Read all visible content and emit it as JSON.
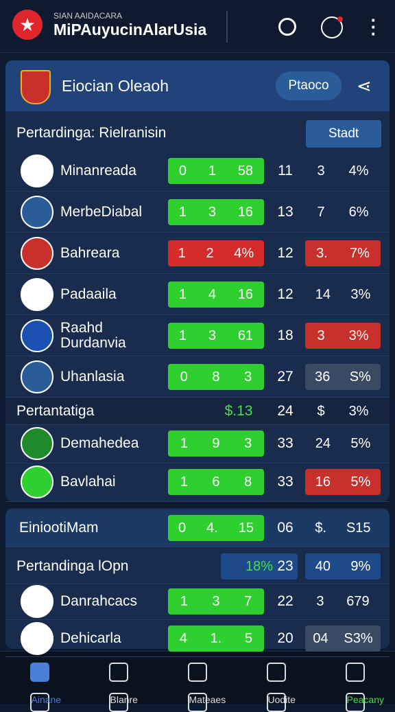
{
  "header": {
    "kicker": "SIAN AAIDACARA",
    "title": "MiPAuyucinAlarUsia"
  },
  "card1": {
    "title": "Eiocian Oleaoh",
    "button": "Ptaoco",
    "subtitle": "Pertardinga: Rielranisin",
    "stat_button": "Stadt",
    "rows": [
      {
        "name": "Minanreada",
        "score": [
          "0",
          "1",
          "58"
        ],
        "score_color": "#2fcf2f",
        "played": "11",
        "last": [
          "3",
          "4%"
        ],
        "last_color": null
      },
      {
        "name": "MerbeDiabal",
        "score": [
          "1",
          "3",
          "16"
        ],
        "score_color": "#2fcf2f",
        "played": "13",
        "last": [
          "7",
          "6%"
        ],
        "last_color": null
      },
      {
        "name": "Bahreara",
        "score": [
          "1",
          "2",
          "4%"
        ],
        "score_color": "#d62b2b",
        "played": "12",
        "last": [
          "3.",
          "7%"
        ],
        "last_color": "#c8302c"
      },
      {
        "name": "Padaaila",
        "score": [
          "1",
          "4",
          "16"
        ],
        "score_color": "#2fcf2f",
        "played": "12",
        "last": [
          "14",
          "3%"
        ],
        "last_color": null
      },
      {
        "name": "Raahd Durdanvia",
        "score": [
          "1",
          "3",
          "61"
        ],
        "score_color": "#2fcf2f",
        "played": "18",
        "last": [
          "3",
          "3%"
        ],
        "last_color": "#c8302c"
      },
      {
        "name": "Uhanlasia",
        "score": [
          "0",
          "8",
          "3"
        ],
        "score_color": "#2fcf2f",
        "played": "27",
        "last": [
          "36",
          "S%"
        ],
        "last_color": "#3a4a62"
      }
    ],
    "section": {
      "name": "Pertantatiga",
      "score": "$.13",
      "played": "24",
      "last": [
        "$",
        "3%"
      ]
    },
    "rows2": [
      {
        "name": "Demahedea",
        "score": [
          "1",
          "9",
          "3"
        ],
        "score_color": "#2fcf2f",
        "played": "33",
        "last": [
          "24",
          "5%"
        ],
        "last_color": null
      },
      {
        "name": "Bavlahai",
        "score": [
          "1",
          "6",
          "8"
        ],
        "score_color": "#2fcf2f",
        "played": "33",
        "last": [
          "16",
          "5%"
        ],
        "last_color": "#c8302c"
      }
    ]
  },
  "card2": {
    "title": "EiniootiMam",
    "title_score": [
      "0",
      "4.",
      "15"
    ],
    "title_played": "06",
    "title_last": [
      "$.",
      "S15"
    ],
    "subtitle": "Pertandinga lOpn",
    "sub_score": "18%",
    "sub_played": "23",
    "sub_last": [
      "40",
      "9%"
    ],
    "rows": [
      {
        "name": "Danrahcacs",
        "score": [
          "1",
          "3",
          "7"
        ],
        "score_color": "#2fcf2f",
        "played": "22",
        "last": [
          "3",
          "679"
        ],
        "last_color": null
      },
      {
        "name": "Dehicarla",
        "score": [
          "4",
          "1.",
          "5"
        ],
        "score_color": "#2fcf2f",
        "played": "20",
        "last": [
          "04",
          "S3%"
        ],
        "last_color": "#3a4a62"
      }
    ]
  },
  "nav": [
    "Ainane",
    "Blanre",
    "Mateaes",
    "Uodite",
    "Peacany"
  ]
}
